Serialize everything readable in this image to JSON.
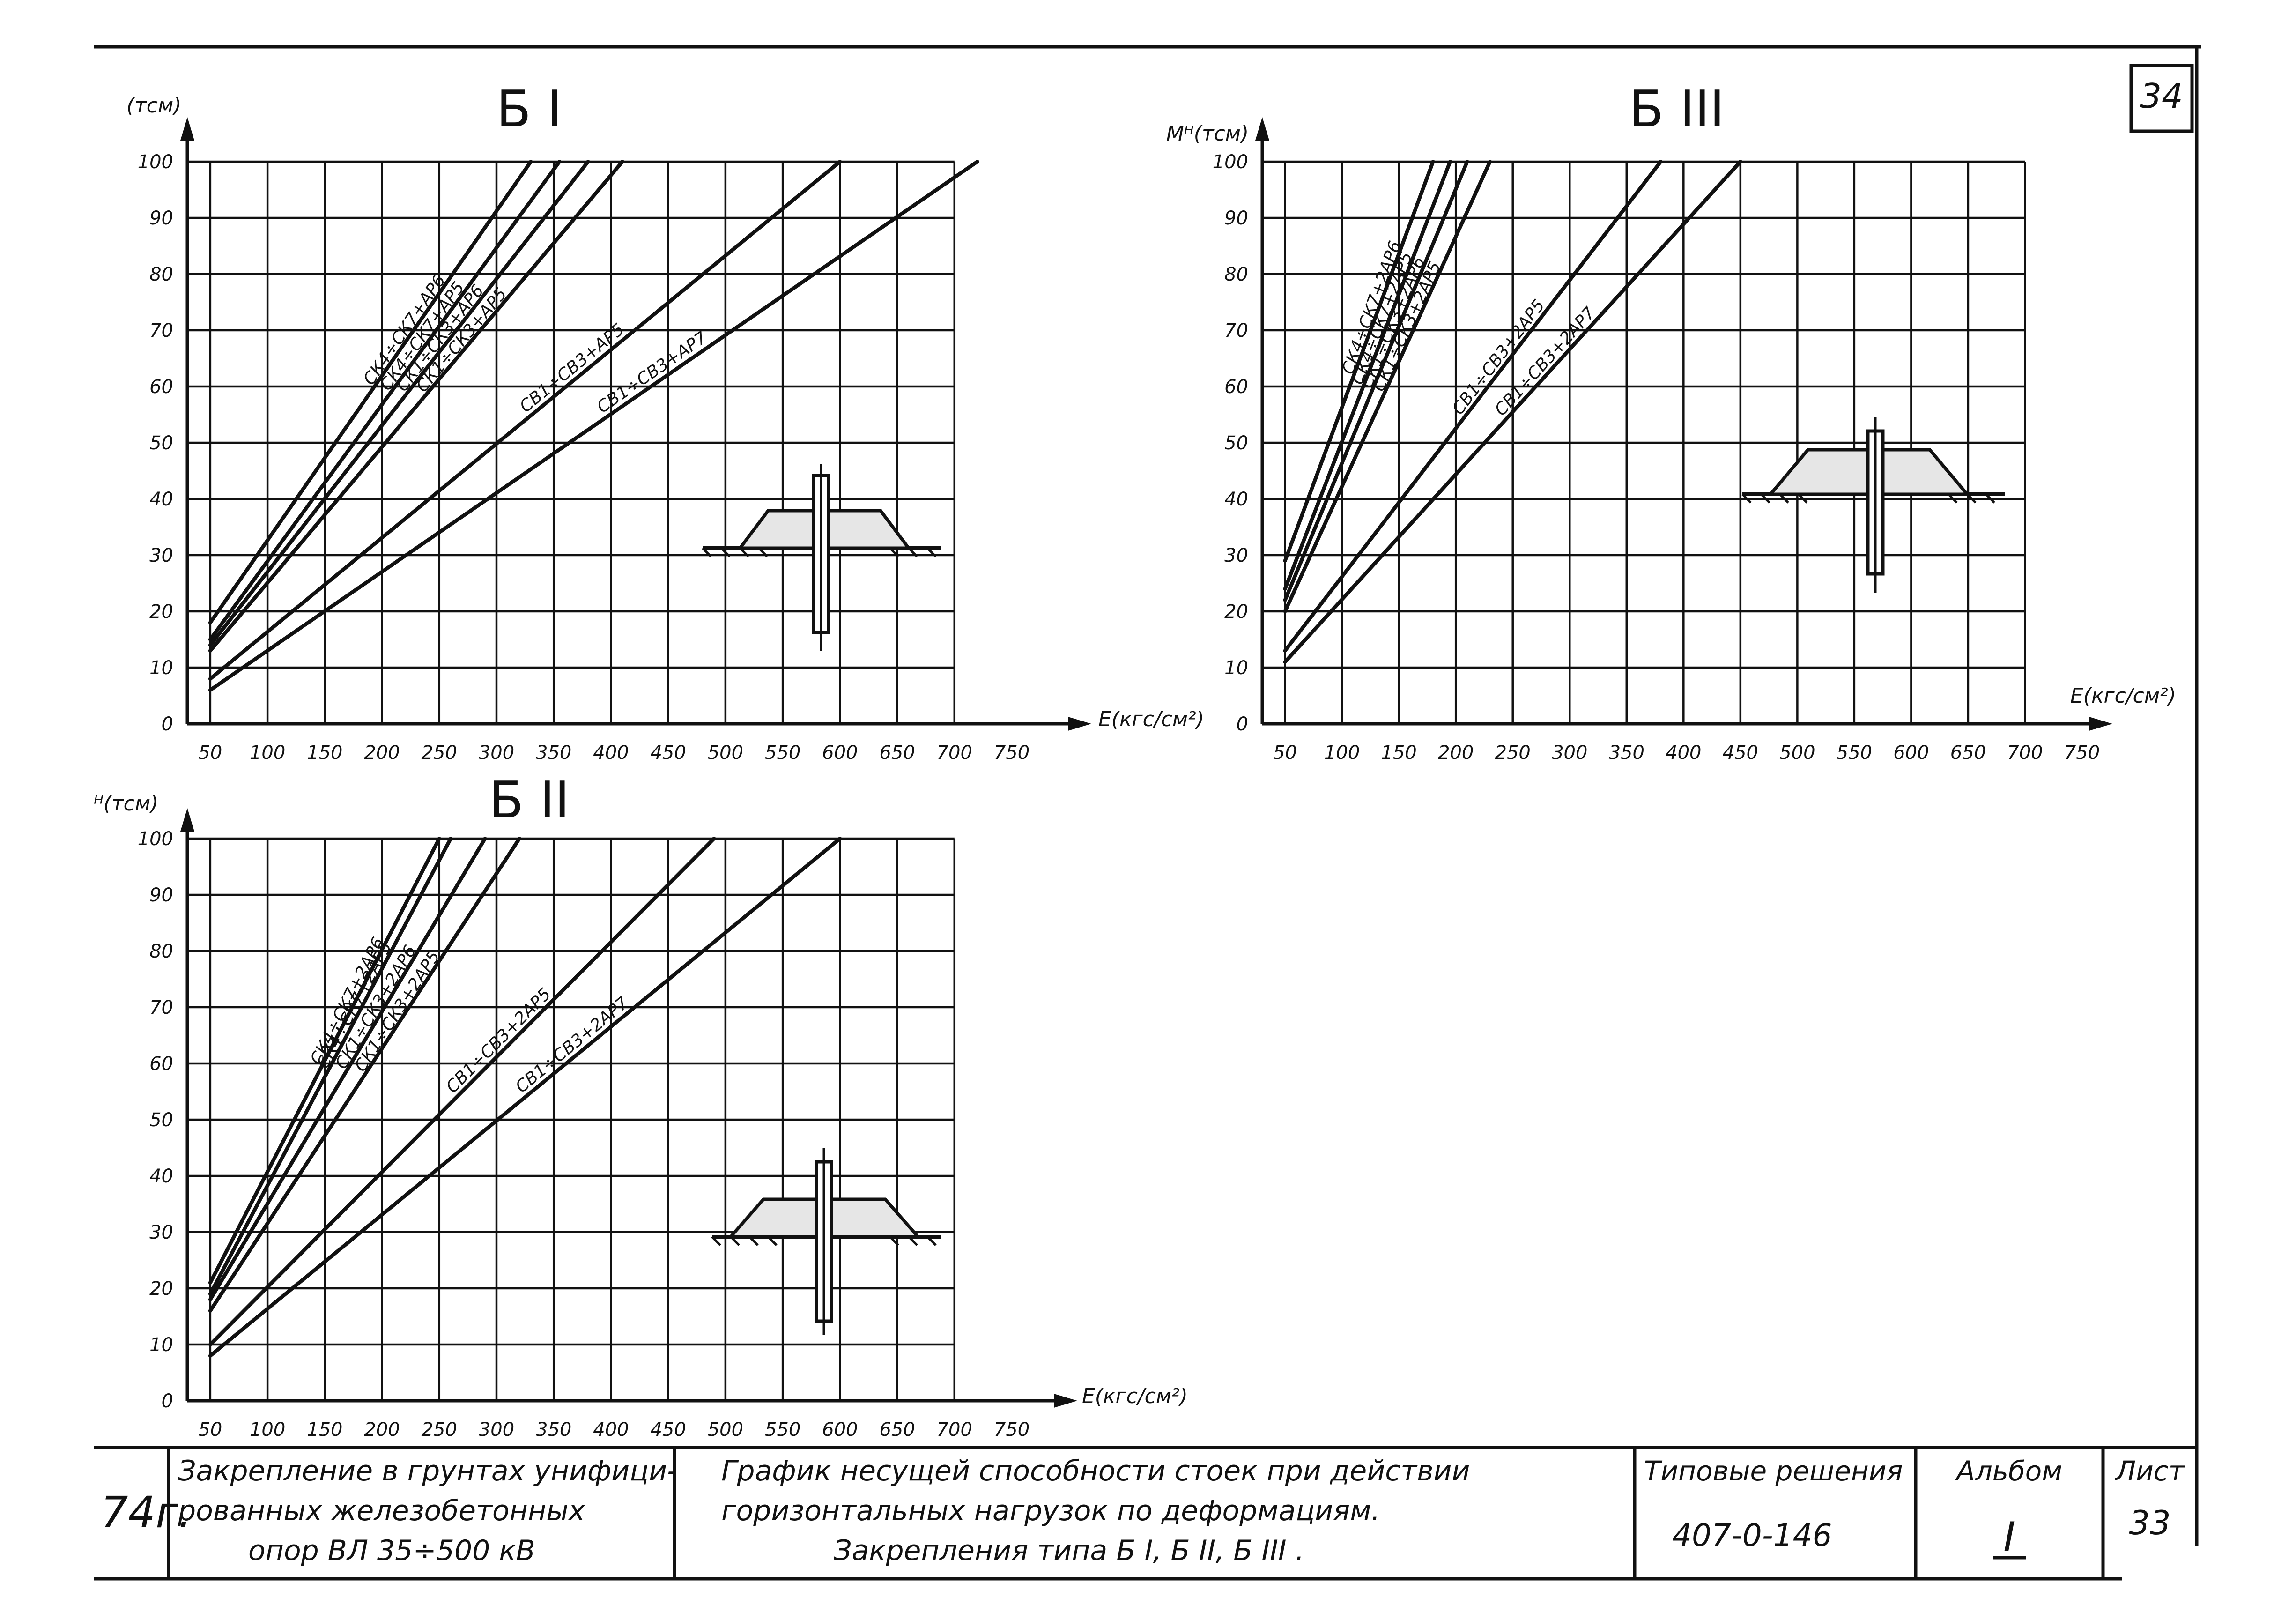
{
  "sheet": {
    "sheet_number_corner": "34"
  },
  "chart_data": [
    {
      "type": "line",
      "id": "b1",
      "title": "Б I",
      "ylabel": "(тсм)",
      "xlabel": "E(кгс/см²)",
      "x_ticks": [
        50,
        100,
        150,
        200,
        250,
        300,
        350,
        400,
        450,
        500,
        550,
        600,
        650,
        700,
        750
      ],
      "y_ticks": [
        0,
        10,
        20,
        30,
        40,
        50,
        60,
        70,
        80,
        90,
        100
      ],
      "xlim": [
        30,
        750
      ],
      "ylim": [
        0,
        100
      ],
      "grid": true,
      "series": [
        {
          "name": "СК4÷СК7+АР6",
          "x": [
            50,
            330
          ],
          "y": [
            18,
            100
          ]
        },
        {
          "name": "СК4÷СК7+АР5",
          "x": [
            50,
            355
          ],
          "y": [
            15,
            100
          ]
        },
        {
          "name": "СК1÷СК3+АР6",
          "x": [
            50,
            380
          ],
          "y": [
            14,
            100
          ]
        },
        {
          "name": "СК1÷СК3+АР5",
          "x": [
            50,
            410
          ],
          "y": [
            13,
            100
          ]
        },
        {
          "name": "СВ1÷СВ3+АР5",
          "x": [
            50,
            600
          ],
          "y": [
            8,
            100
          ]
        },
        {
          "name": "СВ1÷СВ3+АР7",
          "x": [
            50,
            720
          ],
          "y": [
            6,
            100
          ]
        }
      ]
    },
    {
      "type": "line",
      "id": "b3",
      "title": "Б III",
      "ylabel": "Mᴴ(тсм)",
      "xlabel": "E(кгс/см²)",
      "x_ticks": [
        50,
        100,
        150,
        200,
        250,
        300,
        350,
        400,
        450,
        500,
        550,
        600,
        650,
        700,
        750
      ],
      "y_ticks": [
        0,
        10,
        20,
        30,
        40,
        50,
        60,
        70,
        80,
        90,
        100
      ],
      "xlim": [
        30,
        750
      ],
      "ylim": [
        0,
        100
      ],
      "grid": true,
      "series": [
        {
          "name": "СК4÷СК7+2АР6",
          "x": [
            50,
            180
          ],
          "y": [
            29,
            100
          ]
        },
        {
          "name": "СК4÷СК7+2АР5",
          "x": [
            50,
            195
          ],
          "y": [
            24,
            100
          ]
        },
        {
          "name": "СК1÷СК3+2АР6",
          "x": [
            50,
            210
          ],
          "y": [
            22,
            100
          ]
        },
        {
          "name": "СК1÷СК3+2АР5",
          "x": [
            50,
            230
          ],
          "y": [
            20,
            100
          ]
        },
        {
          "name": "СВ1÷СВ3+2АР5",
          "x": [
            50,
            380
          ],
          "y": [
            13,
            100
          ]
        },
        {
          "name": "СВ1÷СВ3+2АР7",
          "x": [
            50,
            450
          ],
          "y": [
            11,
            100
          ]
        }
      ]
    },
    {
      "type": "line",
      "id": "b2",
      "title": "Б II",
      "ylabel": "ᴴ(тсм)",
      "xlabel": "E(кгс/см²)",
      "x_ticks": [
        50,
        100,
        150,
        200,
        250,
        300,
        350,
        400,
        450,
        500,
        550,
        600,
        650,
        700,
        750
      ],
      "y_ticks": [
        0,
        10,
        20,
        30,
        40,
        50,
        60,
        70,
        80,
        90,
        100
      ],
      "xlim": [
        30,
        750
      ],
      "ylim": [
        0,
        100
      ],
      "grid": true,
      "series": [
        {
          "name": "СК4÷СК7+2АР6",
          "x": [
            50,
            250
          ],
          "y": [
            21,
            100
          ]
        },
        {
          "name": "СК4÷СК7+2АР5",
          "x": [
            50,
            260
          ],
          "y": [
            19,
            100
          ]
        },
        {
          "name": "СК1÷СК3+2АР6",
          "x": [
            50,
            290
          ],
          "y": [
            18,
            100
          ]
        },
        {
          "name": "СК1÷СК3+2АР5",
          "x": [
            50,
            320
          ],
          "y": [
            16,
            100
          ]
        },
        {
          "name": "СВ1÷СВ3+2АР5",
          "x": [
            50,
            490
          ],
          "y": [
            10,
            100
          ]
        },
        {
          "name": "СВ1÷СВ3+2АР7",
          "x": [
            50,
            600
          ],
          "y": [
            8,
            100
          ]
        }
      ]
    }
  ],
  "title_block": {
    "year": "74г.",
    "subject_line1": "Закрепление в грунтах унифици-",
    "subject_line2": "рованных железобетонных",
    "subject_line3": "опор ВЛ 35÷500 кВ",
    "desc_line1": "График несущей способности стоек при действии",
    "desc_line2": "горизонтальных нагрузок по деформациям.",
    "desc_line3": "Закрепления типа Б I, Б II, Б III .",
    "series_label": "Типовые решения",
    "series_value": "407-0-146",
    "album_label": "Альбом",
    "album_value": "I",
    "sheet_label": "Лист",
    "sheet_value": "33"
  }
}
